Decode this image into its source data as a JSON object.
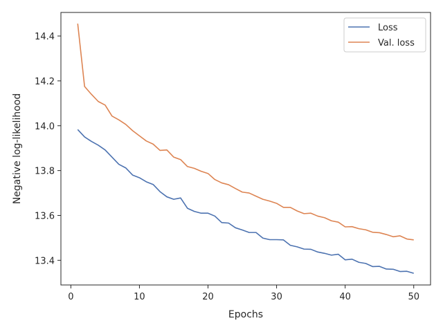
{
  "chart_data": {
    "type": "line",
    "xlabel": "Epochs",
    "ylabel": "Negative log-likelihood",
    "xlim": [
      -1.45,
      52.45
    ],
    "ylim": [
      13.29,
      14.505
    ],
    "xticks": [
      0,
      10,
      20,
      30,
      40,
      50
    ],
    "yticks": [
      13.4,
      13.6,
      13.8,
      14.0,
      14.2,
      14.4
    ],
    "ytick_labels": [
      "13.4",
      "13.6",
      "13.8",
      "14.0",
      "14.2",
      "14.4"
    ],
    "grid": false,
    "legend_position": "top-right",
    "x": [
      1,
      2,
      3,
      4,
      5,
      6,
      7,
      8,
      9,
      10,
      11,
      12,
      13,
      14,
      15,
      16,
      17,
      18,
      19,
      20,
      21,
      22,
      23,
      24,
      25,
      26,
      27,
      28,
      29,
      30,
      31,
      32,
      33,
      34,
      35,
      36,
      37,
      38,
      39,
      40,
      41,
      42,
      43,
      44,
      45,
      46,
      47,
      48,
      49,
      50
    ],
    "series": [
      {
        "name": "Loss",
        "color": "#4c72b0",
        "values": [
          13.983,
          13.95,
          13.93,
          13.913,
          13.892,
          13.86,
          13.828,
          13.812,
          13.78,
          13.768,
          13.75,
          13.738,
          13.706,
          13.683,
          13.672,
          13.678,
          13.632,
          13.618,
          13.61,
          13.61,
          13.597,
          13.568,
          13.566,
          13.545,
          13.535,
          13.524,
          13.524,
          13.499,
          13.492,
          13.492,
          13.491,
          13.467,
          13.46,
          13.45,
          13.449,
          13.437,
          13.431,
          13.423,
          13.427,
          13.402,
          13.405,
          13.391,
          13.386,
          13.372,
          13.373,
          13.361,
          13.36,
          13.35,
          13.351,
          13.342
        ]
      },
      {
        "name": "Val. loss",
        "color": "#dd8452",
        "values": [
          14.455,
          14.175,
          14.14,
          14.108,
          14.092,
          14.043,
          14.026,
          14.006,
          13.978,
          13.955,
          13.932,
          13.918,
          13.89,
          13.892,
          13.86,
          13.849,
          13.818,
          13.81,
          13.797,
          13.787,
          13.76,
          13.745,
          13.737,
          13.72,
          13.704,
          13.7,
          13.686,
          13.672,
          13.664,
          13.654,
          13.636,
          13.636,
          13.62,
          13.608,
          13.61,
          13.597,
          13.59,
          13.576,
          13.57,
          13.549,
          13.55,
          13.541,
          13.536,
          13.525,
          13.523,
          13.515,
          13.505,
          13.509,
          13.495,
          13.491
        ]
      }
    ]
  }
}
